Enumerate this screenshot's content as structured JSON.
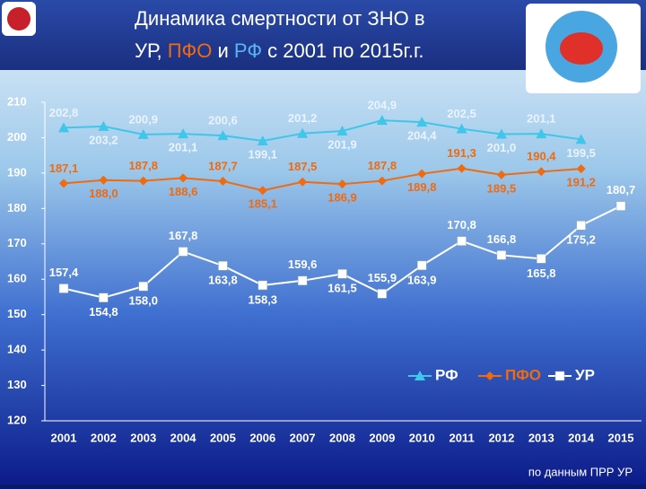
{
  "chart_data": {
    "type": "line",
    "title": [
      [
        "Динамика смертности от ЗНО в"
      ],
      [
        "УР, ",
        "ПФО",
        " и ",
        "РФ",
        " с 2001 по 2015г.г."
      ]
    ],
    "source": "по данным ПРР УР",
    "categories": [
      "2001",
      "2002",
      "2003",
      "2004",
      "2005",
      "2006",
      "2007",
      "2008",
      "2009",
      "2010",
      "2011",
      "2012",
      "2013",
      "2014",
      "2015"
    ],
    "ylim": [
      120,
      210
    ],
    "yticks": [
      120,
      130,
      140,
      150,
      160,
      170,
      180,
      190,
      200,
      210
    ],
    "legend": "bottom-right",
    "series": [
      {
        "name": "РФ",
        "color": "#3fc6e8",
        "marker": "triangle",
        "values": [
          202.8,
          203.2,
          200.9,
          201.1,
          200.6,
          199.1,
          201.2,
          201.9,
          204.9,
          204.4,
          202.5,
          201.0,
          201.1,
          199.5,
          null
        ],
        "value_labels": [
          "202,8",
          "203,2",
          "200,9",
          "201,1",
          "200,6",
          "199,1",
          "201,2",
          "201,9",
          "204,9",
          "204,4",
          "202,5",
          "201,0",
          "201,1",
          "199,5",
          null
        ]
      },
      {
        "name": "ПФО",
        "color": "#f06a10",
        "marker": "diamond",
        "values": [
          187.1,
          188.0,
          187.8,
          188.6,
          187.7,
          185.1,
          187.5,
          186.9,
          187.8,
          189.8,
          191.3,
          189.5,
          190.4,
          191.2,
          null
        ],
        "value_labels": [
          "187,1",
          "188,0",
          "187,8",
          "188,6",
          "187,7",
          "185,1",
          "187,5",
          "186,9",
          "187,8",
          "189,8",
          "191,3",
          "189,5",
          "190,4",
          "191,2",
          null
        ]
      },
      {
        "name": "УР",
        "color": "#ffffff",
        "marker": "square",
        "values": [
          157.4,
          154.8,
          158.0,
          167.8,
          163.8,
          158.3,
          159.6,
          161.5,
          155.9,
          163.9,
          170.8,
          166.8,
          165.8,
          175.2,
          180.7
        ],
        "value_labels": [
          "157,4",
          "154,8",
          "158,0",
          "167,8",
          "163,8",
          "158,3",
          "159,6",
          "161,5",
          "155,9",
          "163,9",
          "170,8",
          "166,8",
          "165,8",
          "175,2",
          "180,7"
        ]
      }
    ]
  }
}
